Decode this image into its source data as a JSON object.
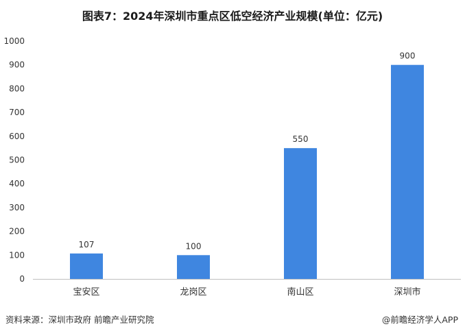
{
  "chart_data": {
    "type": "bar",
    "title": "图表7：2024年深圳市重点区低空经济产业规模(单位：亿元)",
    "categories": [
      "宝安区",
      "龙岗区",
      "南山区",
      "深圳市"
    ],
    "values": [
      107,
      100,
      550,
      900
    ],
    "data_labels": [
      "107",
      "100",
      "550",
      "900"
    ],
    "ylim": [
      0,
      1000
    ],
    "yticks": [
      0,
      100,
      200,
      300,
      400,
      500,
      600,
      700,
      800,
      900,
      1000
    ],
    "ytick_labels": [
      "0",
      "100",
      "200",
      "300",
      "400",
      "500",
      "600",
      "700",
      "800",
      "900",
      "1000"
    ],
    "xlabel": "",
    "ylabel": "",
    "grid": false,
    "bar_color": "#3f86e0"
  },
  "footer": {
    "source": "资料来源：深圳市政府 前瞻产业研究院",
    "brand": "@前瞻经济学人APP"
  }
}
